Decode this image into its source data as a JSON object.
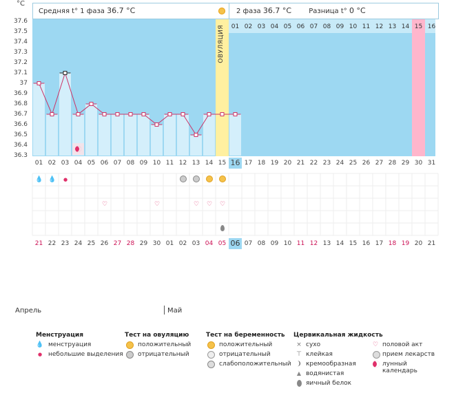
{
  "chart_data": {
    "type": "line",
    "ylabel": "°C",
    "y_ticks": [
      "37.6",
      "37.5",
      "37.4",
      "37.3",
      "37.2",
      "37.1",
      "37",
      "36.9",
      "36.8",
      "36.7",
      "36.6",
      "36.5",
      "36.4",
      "36.3"
    ],
    "ylim": [
      36.3,
      37.6
    ],
    "x": [
      "01",
      "02",
      "03",
      "04",
      "05",
      "06",
      "07",
      "08",
      "09",
      "10",
      "11",
      "12",
      "13",
      "14",
      "15"
    ],
    "values": [
      37.0,
      36.7,
      37.1,
      36.7,
      36.8,
      36.7,
      36.7,
      36.7,
      36.7,
      36.6,
      36.7,
      36.7,
      36.5,
      36.7,
      36.7
    ]
  },
  "header": {
    "phase1_label": "Средняя t° 1 фаза",
    "phase1_value": "36.7 °C",
    "phase2_label": "2 фаза",
    "phase2_value": "36.7 °C",
    "diff_label": "Разница t°",
    "diff_value": "0 °C"
  },
  "ovulation_label": "ОВУЛЯЦИЯ",
  "cycle_days": [
    "01",
    "02",
    "03",
    "04",
    "05",
    "06",
    "07",
    "08",
    "09",
    "10",
    "11",
    "12",
    "13",
    "14",
    "15",
    "16",
    "17",
    "18",
    "19",
    "20",
    "21",
    "22",
    "23",
    "24",
    "25",
    "26",
    "27",
    "28",
    "29",
    "30",
    "31"
  ],
  "phase2_days": [
    "01",
    "02",
    "03",
    "04",
    "05",
    "06",
    "07",
    "08",
    "09",
    "10",
    "11",
    "12",
    "13",
    "14",
    "15",
    "16"
  ],
  "today_day": "16",
  "calendar_dates": [
    "21",
    "22",
    "23",
    "24",
    "25",
    "26",
    "27",
    "28",
    "29",
    "30",
    "01",
    "02",
    "03",
    "04",
    "05",
    "06",
    "07",
    "08",
    "09",
    "10",
    "11",
    "12",
    "13",
    "14",
    "15",
    "16",
    "17",
    "18",
    "19",
    "20",
    "21"
  ],
  "month_april": "Апрель",
  "month_may": "Май",
  "legend": {
    "menstruation": {
      "title": "Менструация",
      "items": [
        "менструация",
        "небольшие выделения"
      ]
    },
    "ovulation_test": {
      "title": "Тест на овуляцию",
      "items": [
        "положительный",
        "отрицательный"
      ]
    },
    "pregnancy_test": {
      "title": "Тест на беременность",
      "items": [
        "положительный",
        "отрицательный",
        "слабоположительный"
      ]
    },
    "cervical": {
      "title": "Цервикальная жидкость",
      "items": [
        "сухо",
        "клейкая",
        "кремообразная",
        "водянистая",
        "яичный белок"
      ]
    },
    "other": {
      "items": [
        "половой акт",
        "прием лекарств",
        "лунный календарь"
      ]
    }
  },
  "colors": {
    "accent_blue": "#9dd8f2",
    "ovulation": "#fff0a0",
    "pink": "#ffb6cc",
    "line": "#cc3366"
  }
}
